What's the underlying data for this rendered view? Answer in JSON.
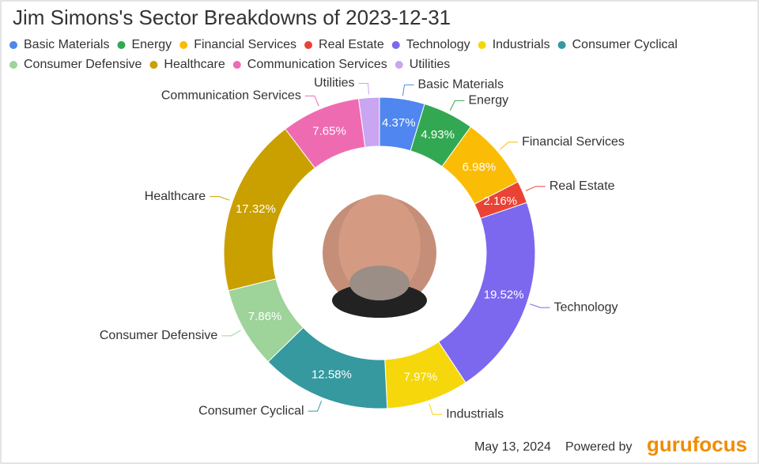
{
  "chart_data": {
    "type": "donut",
    "title": "Jim Simons's Sector Breakdowns of 2023-12-31",
    "categories": [
      "Basic Materials",
      "Energy",
      "Financial Services",
      "Real Estate",
      "Technology",
      "Industrials",
      "Consumer Cyclical",
      "Consumer Defensive",
      "Healthcare",
      "Communication Services",
      "Utilities"
    ],
    "values": [
      4.37,
      4.93,
      6.98,
      2.16,
      19.52,
      7.97,
      12.58,
      7.86,
      17.32,
      7.65,
      2.0
    ],
    "value_labels": [
      "4.37%",
      "4.93%",
      "6.98%",
      "2.16%",
      "19.52%",
      "7.97%",
      "12.58%",
      "7.86%",
      "17.32%",
      "7.65%",
      null
    ],
    "colors": [
      "#4f86f0",
      "#32a852",
      "#fbbc05",
      "#ea4335",
      "#7b68ee",
      "#f5d70c",
      "#35999f",
      "#9ed39a",
      "#c9a000",
      "#ee6bb2",
      "#c9a5f2"
    ],
    "legend": true
  },
  "footer": {
    "date": "May 13, 2024",
    "powered_by": "Powered by",
    "logo": "gurufocus"
  }
}
